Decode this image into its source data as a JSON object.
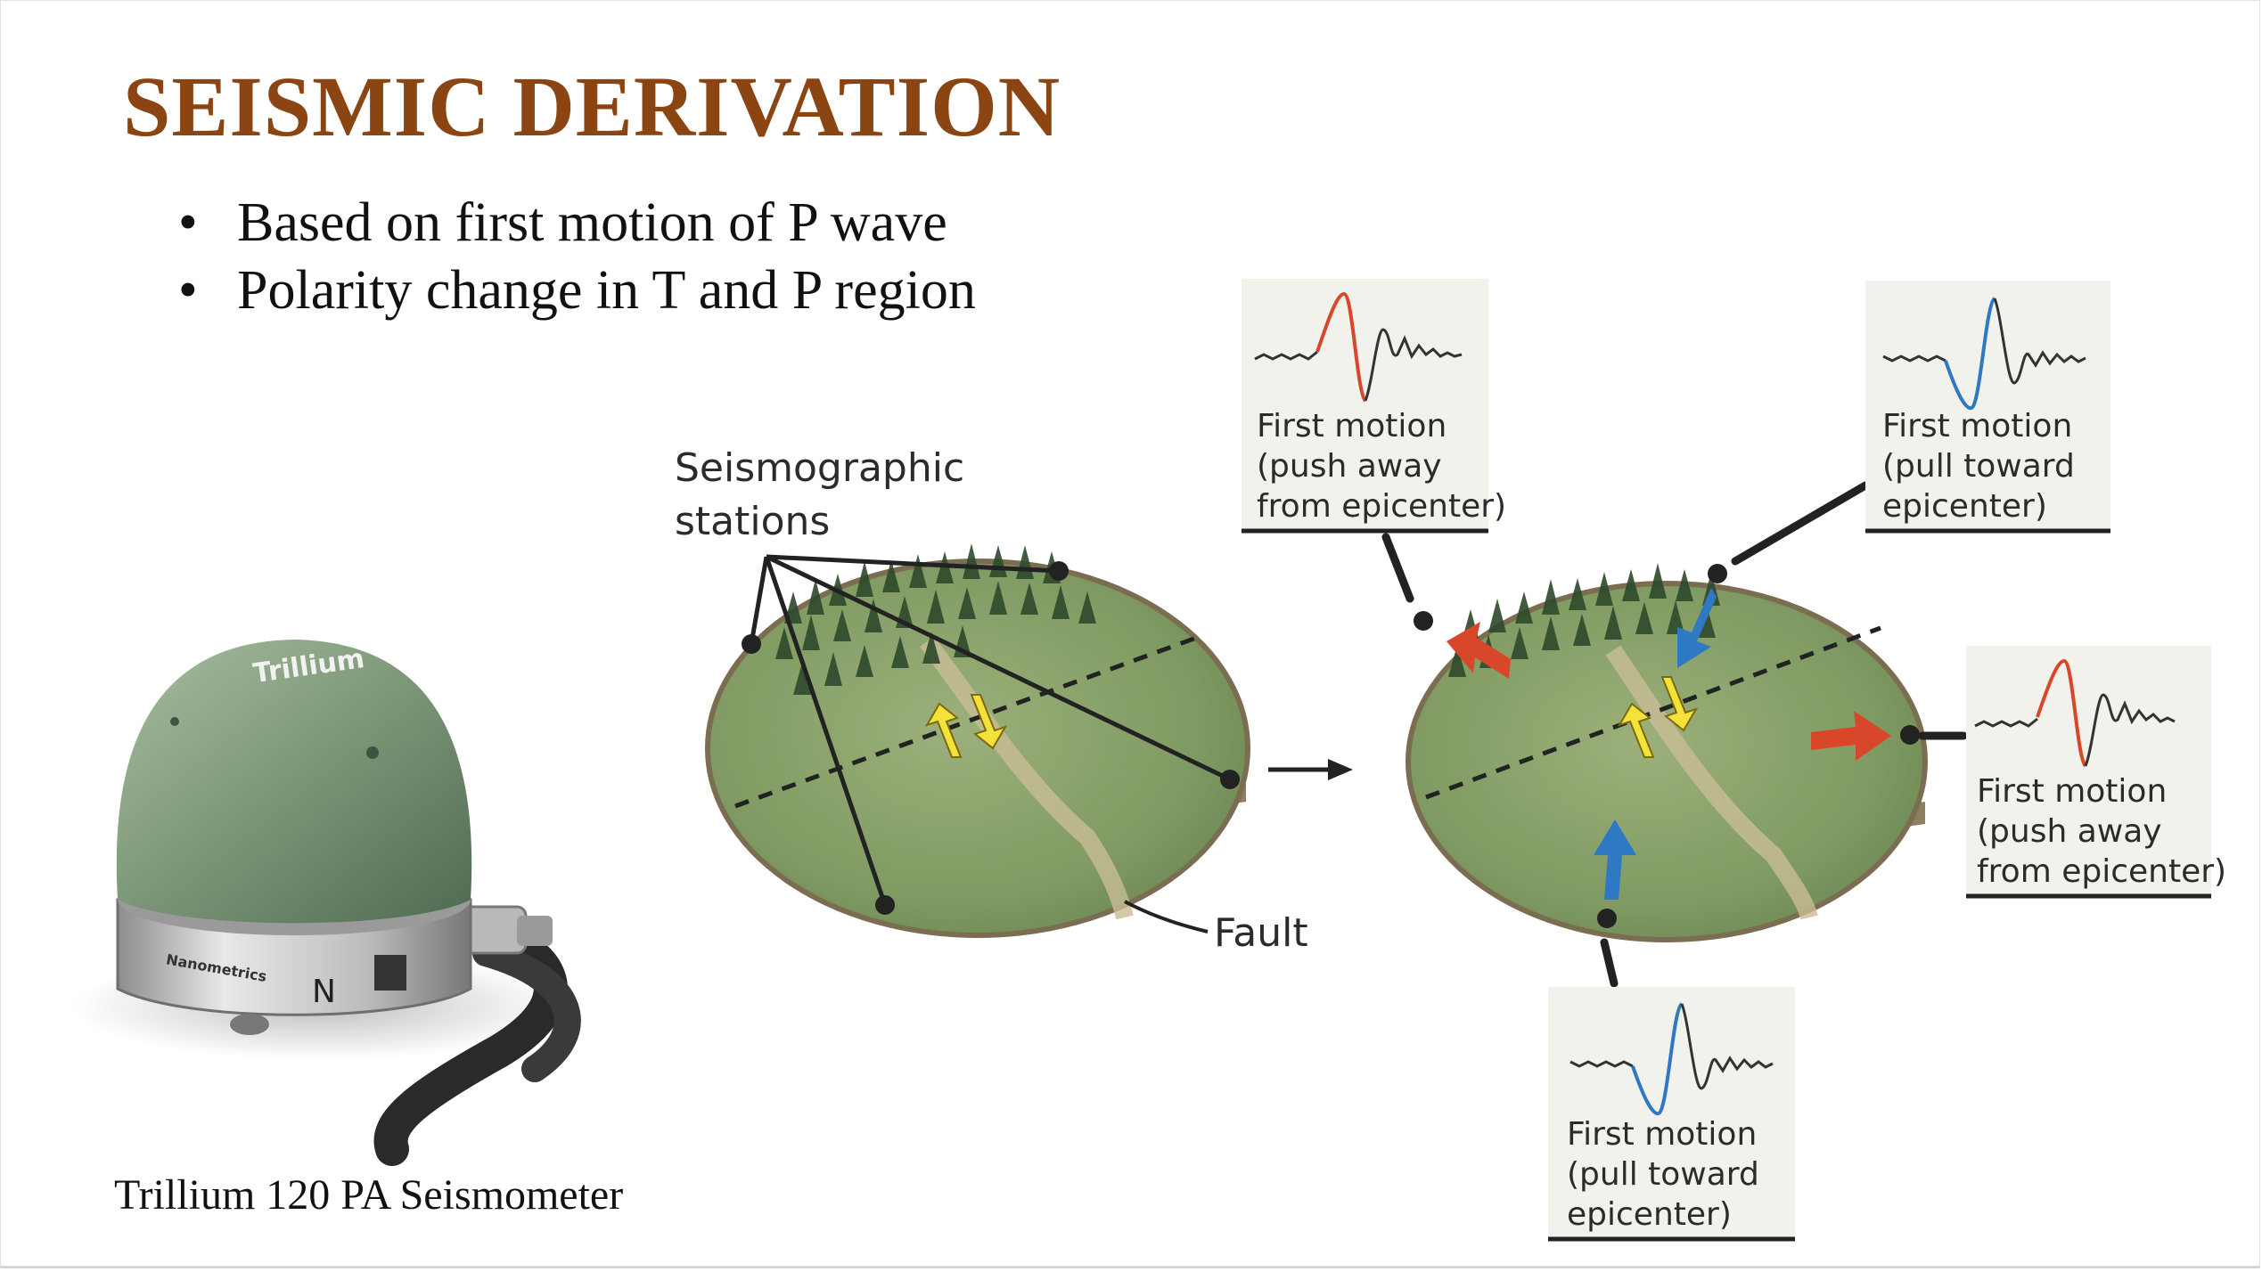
{
  "title": "SEISMIC DERIVATION",
  "bullets": [
    "Based on first motion of P wave",
    "Polarity change in T and P region"
  ],
  "caption": "Trillium 120 PA Seismometer",
  "seismometer": {
    "brand": "Trillium",
    "maker": "Nanometrics",
    "marking": "N"
  },
  "diagram": {
    "stations_label": [
      "Seismographic",
      "stations"
    ],
    "fault_label": "Fault",
    "boxes": [
      {
        "lines": [
          "First motion",
          "(push away",
          "from epicenter)"
        ],
        "color": "#d9472b"
      },
      {
        "lines": [
          "First motion",
          "(pull toward",
          "epicenter)"
        ],
        "color": "#2f78c4"
      },
      {
        "lines": [
          "First motion",
          "(push away",
          "from epicenter)"
        ],
        "color": "#d9472b"
      },
      {
        "lines": [
          "First motion",
          "(pull toward",
          "epicenter)"
        ],
        "color": "#2f78c4"
      }
    ]
  },
  "colors": {
    "title": "#8B4513",
    "push": "#d9472b",
    "pull": "#2f78c4",
    "fault_arrow": "#f4e13a"
  }
}
